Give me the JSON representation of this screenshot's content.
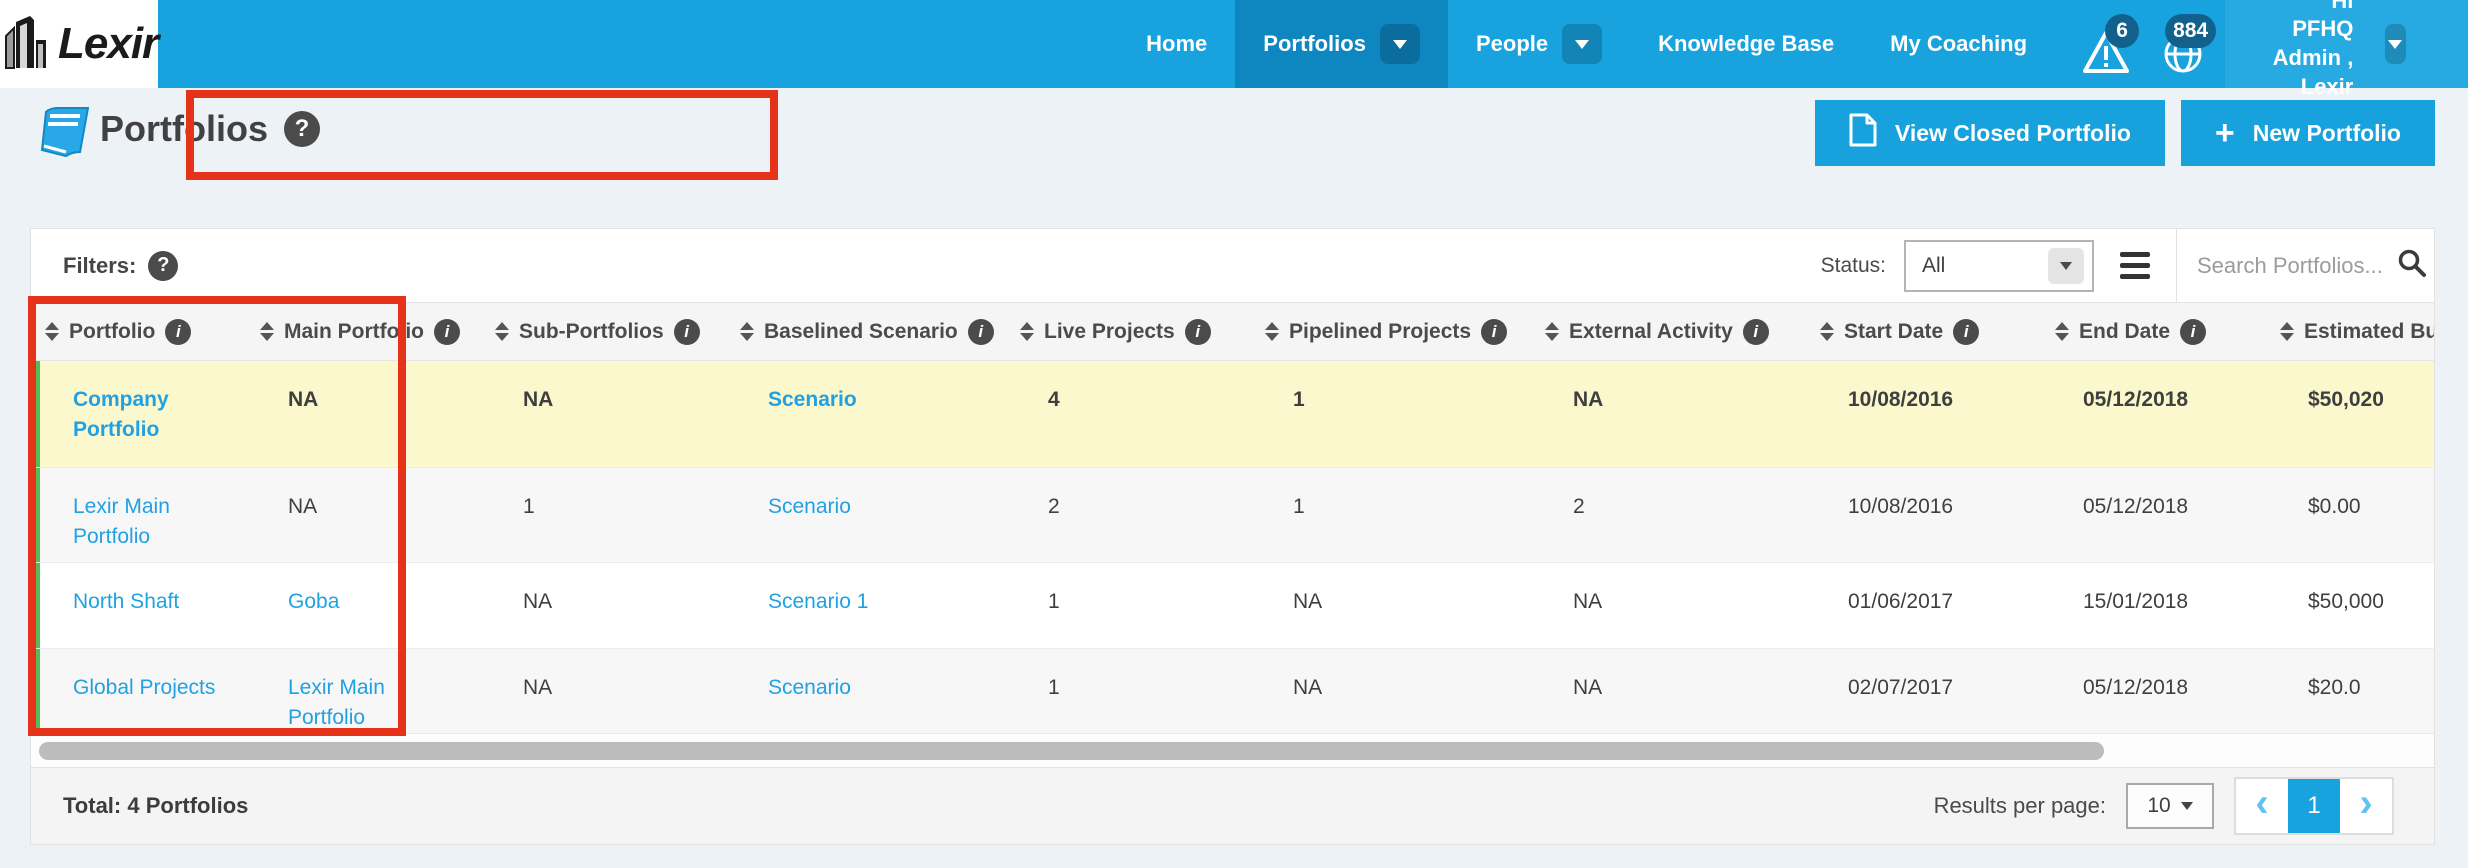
{
  "nav": {
    "brand": "Lexir",
    "items": [
      {
        "label": "Home",
        "active": false,
        "has_dropdown": false
      },
      {
        "label": "Portfolios",
        "active": true,
        "has_dropdown": true
      },
      {
        "label": "People",
        "active": false,
        "has_dropdown": true
      },
      {
        "label": "Knowledge Base",
        "active": false,
        "has_dropdown": false
      },
      {
        "label": "My Coaching",
        "active": false,
        "has_dropdown": false
      }
    ],
    "alerts_badge": "6",
    "notifications_badge": "884",
    "greeting_line1": "Hi PFHQ Admin ,",
    "greeting_line2": "Lexir"
  },
  "header": {
    "title": "Portfolios",
    "help_glyph": "?",
    "view_closed_label": "View Closed Portfolio",
    "new_portfolio_label": "New Portfolio",
    "plus_glyph": "+"
  },
  "filters": {
    "label": "Filters:",
    "help_glyph": "?",
    "status_label": "Status:",
    "status_value": "All",
    "search_placeholder": "Search Portfolios..."
  },
  "table": {
    "columns": [
      "Portfolio",
      "Main Portfolio",
      "Sub-Portfolios",
      "Baselined Scenario",
      "Live Projects",
      "Pipelined Projects",
      "External Activity",
      "Start Date",
      "End Date",
      "Estimated Budget"
    ],
    "info_glyph": "i",
    "rows": [
      {
        "highlighted": true,
        "bold": true,
        "cells": [
          {
            "text": "Company Portfolio",
            "link": true
          },
          {
            "text": "NA"
          },
          {
            "text": "NA"
          },
          {
            "text": "Scenario",
            "link": true
          },
          {
            "text": "4"
          },
          {
            "text": "1"
          },
          {
            "text": "NA"
          },
          {
            "text": "10/08/2016"
          },
          {
            "text": "05/12/2018"
          },
          {
            "text": "$50,020"
          }
        ]
      },
      {
        "highlighted": false,
        "bold": false,
        "cells": [
          {
            "text": "Lexir Main Portfolio",
            "link": true
          },
          {
            "text": "NA"
          },
          {
            "text": "1"
          },
          {
            "text": "Scenario",
            "link": true
          },
          {
            "text": "2"
          },
          {
            "text": "1"
          },
          {
            "text": "2"
          },
          {
            "text": "10/08/2016"
          },
          {
            "text": "05/12/2018"
          },
          {
            "text": "$0.00"
          }
        ]
      },
      {
        "highlighted": false,
        "bold": false,
        "cells": [
          {
            "text": "North Shaft",
            "link": true
          },
          {
            "text": "Goba",
            "link": true
          },
          {
            "text": "NA"
          },
          {
            "text": "Scenario 1",
            "link": true
          },
          {
            "text": "1"
          },
          {
            "text": "NA"
          },
          {
            "text": "NA"
          },
          {
            "text": "01/06/2017"
          },
          {
            "text": "15/01/2018"
          },
          {
            "text": "$50,000"
          }
        ]
      },
      {
        "highlighted": false,
        "bold": false,
        "cells": [
          {
            "text": "Global Projects",
            "link": true
          },
          {
            "text": "Lexir Main Portfolio",
            "link": true
          },
          {
            "text": "NA"
          },
          {
            "text": "Scenario",
            "link": true
          },
          {
            "text": "1"
          },
          {
            "text": "NA"
          },
          {
            "text": "NA"
          },
          {
            "text": "02/07/2017"
          },
          {
            "text": "05/12/2018"
          },
          {
            "text": "$20.0"
          }
        ]
      }
    ]
  },
  "footer": {
    "total": "Total: 4 Portfolios",
    "results_per_page_label": "Results per page:",
    "results_per_page_value": "10",
    "current_page": "1",
    "prev_glyph": "‹",
    "next_glyph": "›"
  },
  "colors": {
    "nav_blue": "#18a2de",
    "nav_active_blue": "#0e86c0",
    "badge_blue": "#12618c",
    "button_blue": "#17a1dd",
    "link_blue": "#21a1e1",
    "row_highlight_yellow": "#fbf8cd",
    "row_stripe_green": "#58ba54",
    "annotation_red": "#e5331a",
    "page_background": "#edf2f7"
  }
}
